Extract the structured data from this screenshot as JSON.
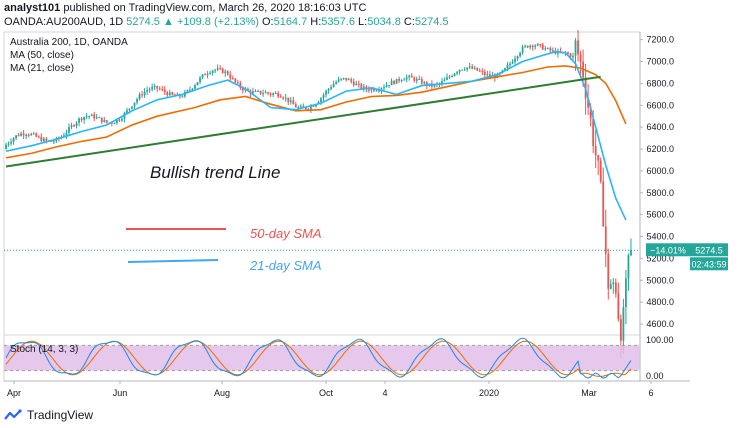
{
  "header": {
    "author": "analyst101",
    "published_text": "published on TradingView.com, March 26, 2020 18:16:03 UTC",
    "symbol": "OANDA:AU200AUD, 1D",
    "last": "5274.5",
    "change": "▲ +109.8 (+2.13%)",
    "ohlc": [
      {
        "label": "O:",
        "value": "5164.7"
      },
      {
        "label": "H:",
        "value": "5357.6"
      },
      {
        "label": "L:",
        "value": "5034.8"
      },
      {
        "label": "C:",
        "value": "5274.5"
      }
    ]
  },
  "chart_data": [
    {
      "type": "line",
      "title": "Australia 200, 1D, OANDA",
      "x_tick_labels": [
        "Apr",
        "Jun",
        "Aug",
        "Oct",
        "4",
        "2020",
        "Mar",
        "6"
      ],
      "y_ticks": [
        4600,
        4800,
        5000,
        5200,
        5400,
        5600,
        5800,
        6000,
        6200,
        6400,
        6600,
        6800,
        7000,
        7200
      ],
      "y_tick_labels": [
        "4600.0",
        "4800.0",
        "5000.0",
        "5200.0",
        "5400.0",
        "5600.0",
        "5800.0",
        "6000.0",
        "6200.0",
        "6400.0",
        "6600.0",
        "6800.0",
        "7000.0",
        "7200.0"
      ],
      "ylim": [
        4500,
        7270
      ],
      "series": [
        {
          "name": "MA (50, close)",
          "color": "#ef6c00",
          "values": [
            [
              0,
              6120
            ],
            [
              10,
              6160
            ],
            [
              20,
              6220
            ],
            [
              30,
              6270
            ],
            [
              40,
              6310
            ],
            [
              50,
              6420
            ],
            [
              60,
              6500
            ],
            [
              75,
              6580
            ],
            [
              85,
              6650
            ],
            [
              95,
              6680
            ],
            [
              105,
              6610
            ],
            [
              115,
              6550
            ],
            [
              125,
              6560
            ],
            [
              135,
              6630
            ],
            [
              145,
              6680
            ],
            [
              155,
              6690
            ],
            [
              165,
              6720
            ],
            [
              175,
              6770
            ],
            [
              185,
              6820
            ],
            [
              195,
              6860
            ],
            [
              205,
              6900
            ],
            [
              215,
              6950
            ],
            [
              222,
              6960
            ],
            [
              228,
              6940
            ],
            [
              234,
              6880
            ],
            [
              238,
              6800
            ],
            [
              242,
              6640
            ],
            [
              246,
              6430
            ]
          ]
        },
        {
          "name": "MA (21, close)",
          "color": "#29b6f6",
          "values": [
            [
              0,
              6180
            ],
            [
              10,
              6230
            ],
            [
              20,
              6290
            ],
            [
              30,
              6360
            ],
            [
              40,
              6420
            ],
            [
              50,
              6550
            ],
            [
              60,
              6650
            ],
            [
              70,
              6700
            ],
            [
              80,
              6780
            ],
            [
              88,
              6830
            ],
            [
              95,
              6750
            ],
            [
              105,
              6580
            ],
            [
              115,
              6560
            ],
            [
              125,
              6620
            ],
            [
              135,
              6730
            ],
            [
              145,
              6760
            ],
            [
              155,
              6700
            ],
            [
              165,
              6780
            ],
            [
              175,
              6800
            ],
            [
              185,
              6820
            ],
            [
              195,
              6880
            ],
            [
              205,
              7000
            ],
            [
              212,
              7050
            ],
            [
              218,
              7090
            ],
            [
              222,
              7080
            ],
            [
              226,
              6980
            ],
            [
              230,
              6750
            ],
            [
              234,
              6400
            ],
            [
              238,
              6050
            ],
            [
              242,
              5750
            ],
            [
              246,
              5550
            ]
          ]
        },
        {
          "name": "Bullish trend Line",
          "color": "#2e7d32",
          "values": [
            [
              0,
              6040
            ],
            [
              236,
              6860
            ]
          ]
        }
      ],
      "annotations": {
        "trend_label": "Bullish trend Line",
        "sma50_label": "50-day SMA",
        "sma21_label": "21-day SMA"
      },
      "last_price_tag": {
        "value": 5274.5,
        "label": "5274.5",
        "pct": "−14.01%",
        "countdown": "02:43:59"
      },
      "candles_up_color": "#26a69a",
      "candles_down_color": "#ef5350"
    },
    {
      "type": "line",
      "title": "Stoch (14, 3, 3)",
      "y_tick_labels": [
        "100.00",
        "0.00"
      ],
      "ylim": [
        0,
        100
      ],
      "band": [
        20,
        80
      ],
      "band_color": "#e1bee7"
    }
  ],
  "footer": {
    "brand": "TradingView"
  }
}
